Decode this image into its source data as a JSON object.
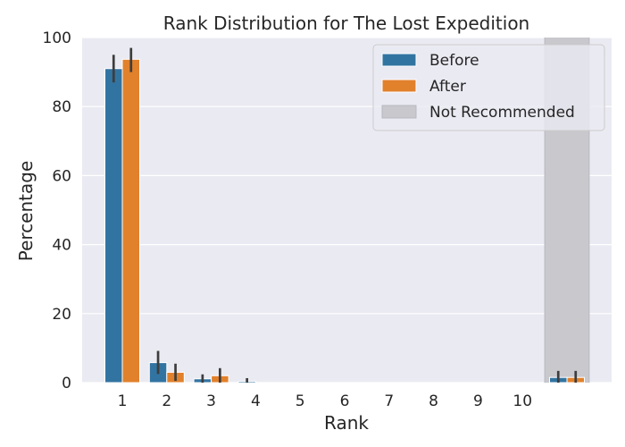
{
  "chart_data": {
    "type": "bar",
    "title": "Rank Distribution for The Lost Expedition",
    "xlabel": "Rank",
    "ylabel": "Percentage",
    "ylim": [
      0,
      100
    ],
    "yticks": [
      0,
      20,
      40,
      60,
      80,
      100
    ],
    "categories": [
      "1",
      "2",
      "3",
      "4",
      "5",
      "6",
      "7",
      "8",
      "9",
      "10",
      ""
    ],
    "series": [
      {
        "name": "Before",
        "color": "#3274a1",
        "values": [
          91,
          5.8,
          1.1,
          0.4,
          0,
          0,
          0,
          0,
          0,
          0,
          1.5
        ],
        "err_low": [
          87,
          2.5,
          0,
          0,
          0,
          0,
          0,
          0,
          0,
          0,
          0
        ],
        "err_high": [
          95,
          9.2,
          2.4,
          1.3,
          0,
          0,
          0,
          0,
          0,
          0,
          3.4
        ]
      },
      {
        "name": "After",
        "color": "#e1812c",
        "values": [
          93.7,
          3.0,
          2.0,
          0,
          0,
          0,
          0,
          0,
          0,
          0,
          1.5
        ],
        "err_low": [
          90,
          0.5,
          0,
          0,
          0,
          0,
          0,
          0,
          0,
          0,
          0
        ],
        "err_high": [
          97,
          5.5,
          4.2,
          0,
          0,
          0,
          0,
          0,
          0,
          0,
          3.4
        ]
      }
    ],
    "shaded_region": {
      "label": "Not Recommended",
      "category_index": 10,
      "color": "#c8c8cd"
    },
    "grid": true,
    "legend": "top-right",
    "background": "#eaeaf2"
  }
}
